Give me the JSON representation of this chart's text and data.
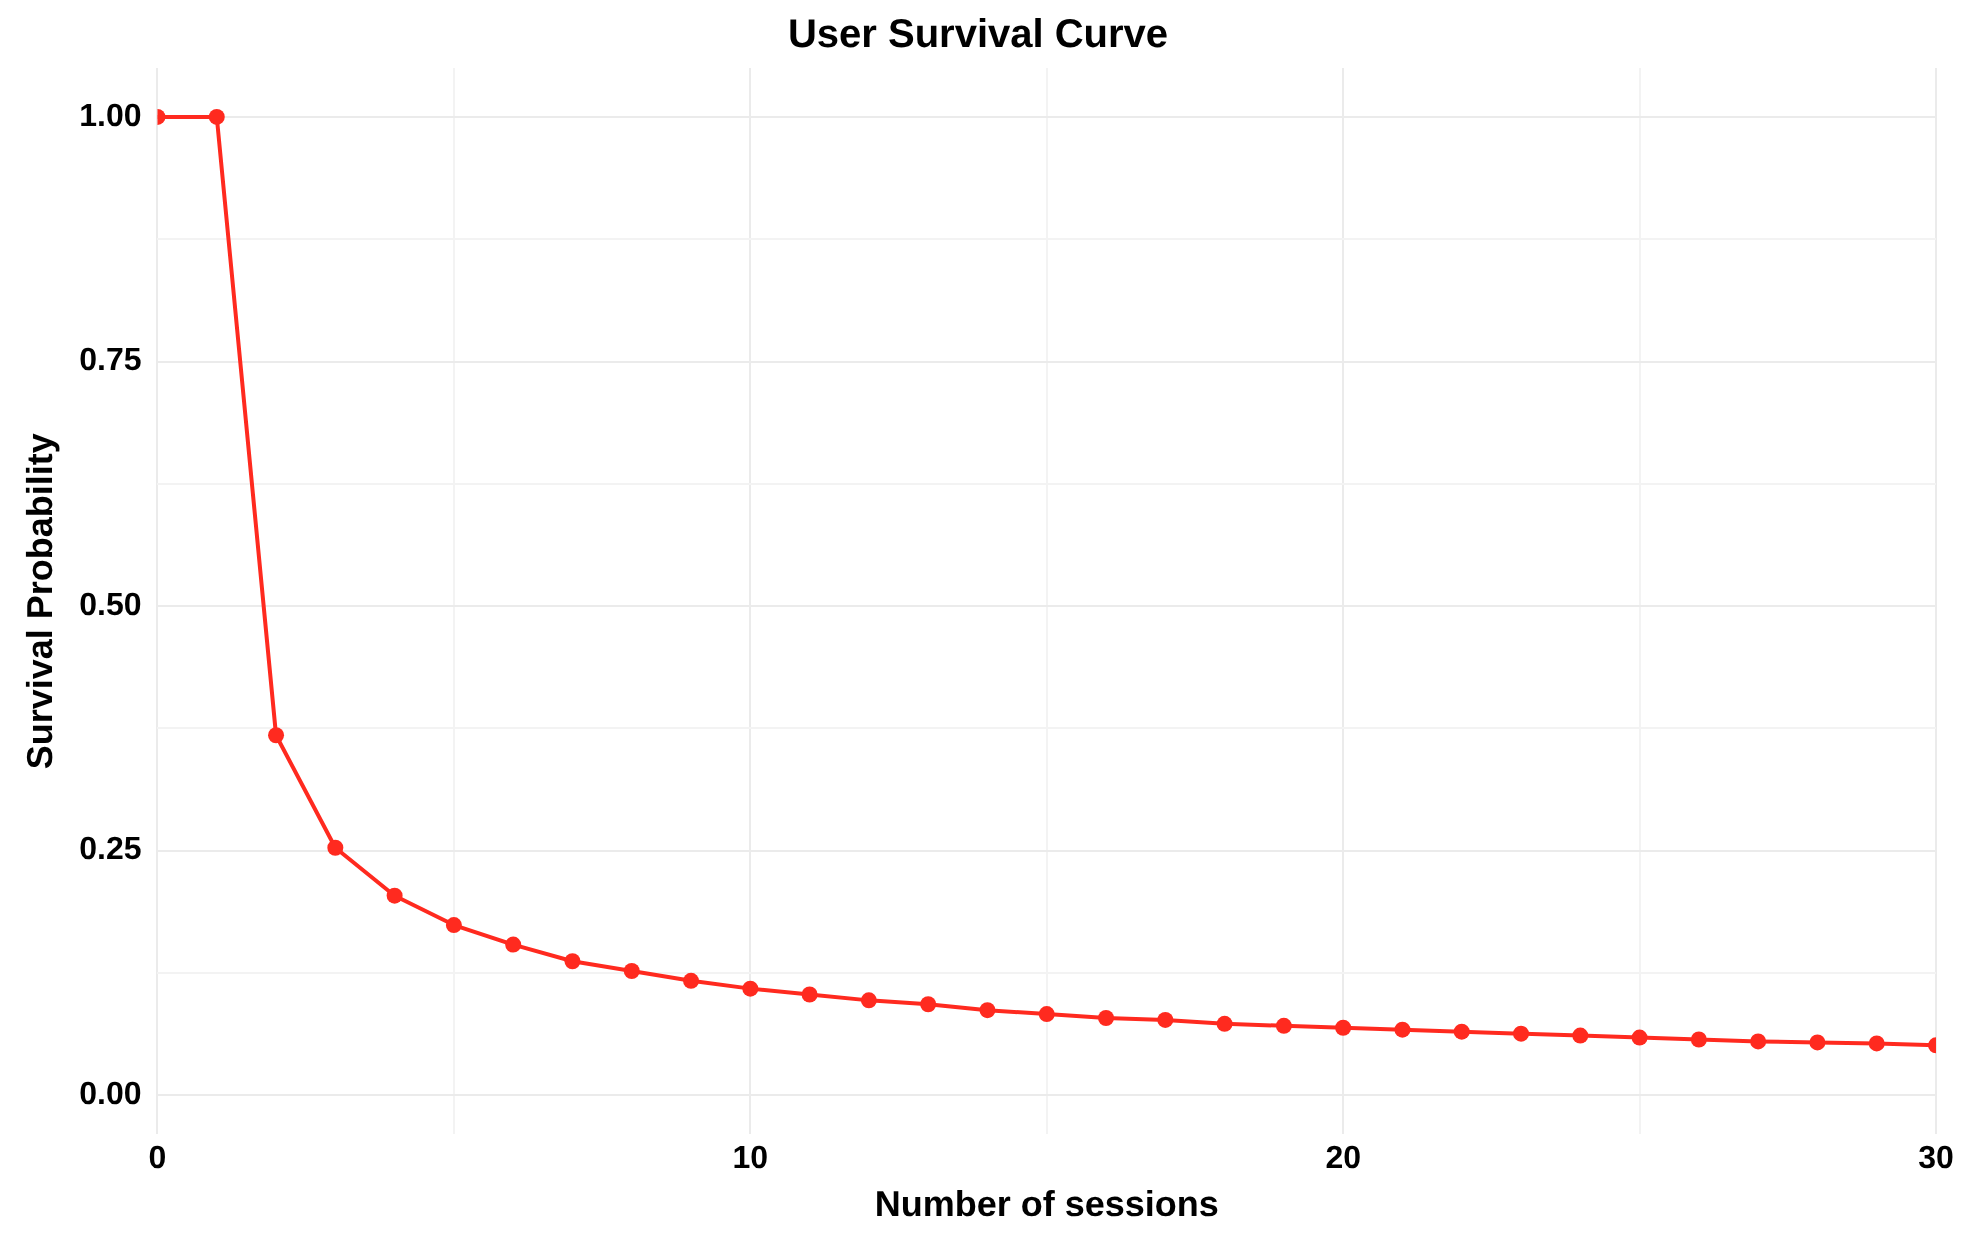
{
  "chart_data": {
    "type": "line",
    "title": "User Survival Curve",
    "xlabel": "Number of sessions",
    "ylabel": "Survival Probability",
    "x": [
      0,
      1,
      2,
      3,
      4,
      5,
      6,
      7,
      8,
      9,
      10,
      11,
      12,
      13,
      14,
      15,
      16,
      17,
      18,
      19,
      20,
      21,
      22,
      23,
      24,
      25,
      26,
      27,
      28,
      29,
      30
    ],
    "series": [
      {
        "color": "#ff2a1f",
        "values": [
          1,
          1,
          0.368,
          0.253,
          0.204,
          0.174,
          0.154,
          0.137,
          0.127,
          0.117,
          0.109,
          0.103,
          0.097,
          0.093,
          0.087,
          0.083,
          0.079,
          0.077,
          0.073,
          0.071,
          0.069,
          0.067,
          0.065,
          0.063,
          0.061,
          0.059,
          0.057,
          0.055,
          0.054,
          0.053,
          0.051
        ]
      }
    ],
    "xlim": [
      0,
      30
    ],
    "xticks": [
      0,
      {
        "value": 5,
        "label": null
      },
      10,
      {
        "value": 15,
        "label": null
      },
      20,
      {
        "value": 25,
        "label": null
      },
      30
    ],
    "ylim": [
      -0.04,
      1.05
    ],
    "yticks": [
      {
        "value": 0,
        "label": "0.00"
      },
      {
        "value": 0.125,
        "label": null
      },
      {
        "value": 0.25,
        "label": "0.25"
      },
      {
        "value": 0.375,
        "label": null
      },
      {
        "value": 0.5,
        "label": "0.50"
      },
      {
        "value": 0.625,
        "label": null
      },
      {
        "value": 0.75,
        "label": "0.75"
      },
      {
        "value": 0.875,
        "label": null
      },
      {
        "value": 1,
        "label": "1.00"
      }
    ],
    "grid": true,
    "marker": "circle",
    "line_style": "solid",
    "legend": false
  }
}
